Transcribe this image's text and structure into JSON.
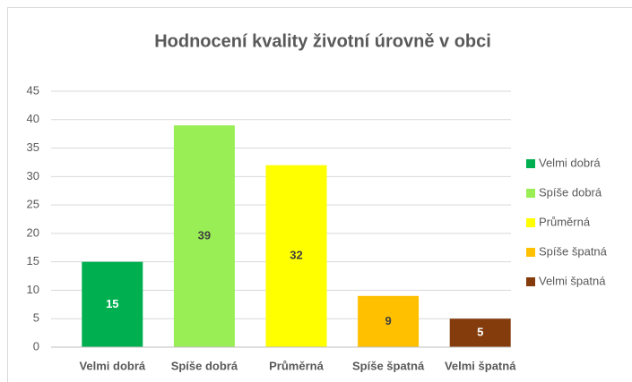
{
  "chart_data": {
    "type": "bar",
    "title": "Hodnocení kvality životní úrovně v obci",
    "categories": [
      "Velmi dobrá",
      "Spíše dobrá",
      "Průměrná",
      "Spíše špatná",
      "Velmi špatná"
    ],
    "values": [
      15,
      39,
      32,
      9,
      5
    ],
    "colors": [
      "#00b050",
      "#99ee55",
      "#ffff00",
      "#ffc000",
      "#843c0c"
    ],
    "ylim": [
      0,
      45
    ],
    "yticks": [
      0,
      5,
      10,
      15,
      20,
      25,
      30,
      35,
      40,
      45
    ],
    "grid": true,
    "legend": "right",
    "data_labels": true
  }
}
